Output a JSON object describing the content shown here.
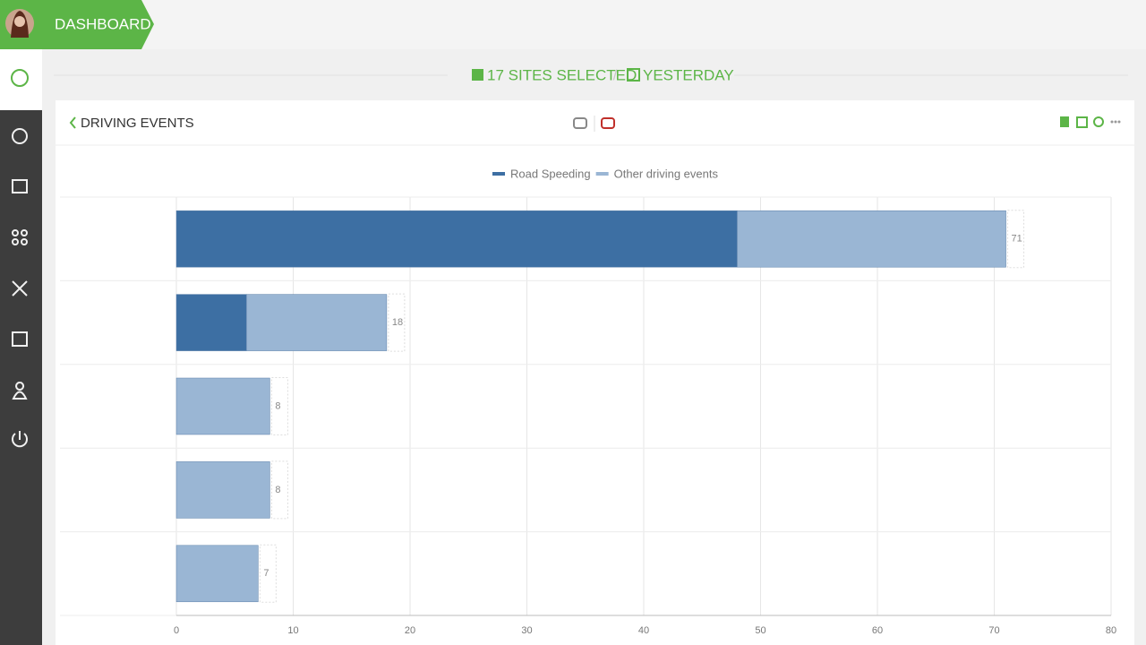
{
  "header": {
    "title": "DASHBOARD"
  },
  "filters": {
    "sites": "17 SITES SELECTED",
    "separator": "/",
    "period": "YESTERDAY"
  },
  "chart_data": {
    "type": "bar",
    "orientation": "horizontal",
    "stacked": true,
    "title": "DRIVING EVENTS",
    "categories": [
      null,
      null,
      null,
      null,
      null
    ],
    "series": [
      {
        "name": "Road Speeding",
        "color": "#3d6fa3",
        "values": [
          48,
          6,
          0,
          0,
          0
        ]
      },
      {
        "name": "Other driving events",
        "color": "#9ab6d4",
        "values": [
          23,
          12,
          8,
          8,
          7
        ]
      }
    ],
    "total_labels": [
      71,
      18,
      8,
      8,
      7
    ],
    "xlim": [
      0,
      80
    ],
    "xticks": [
      0,
      10,
      20,
      30,
      40,
      50,
      60,
      70,
      80
    ],
    "grid": true
  }
}
